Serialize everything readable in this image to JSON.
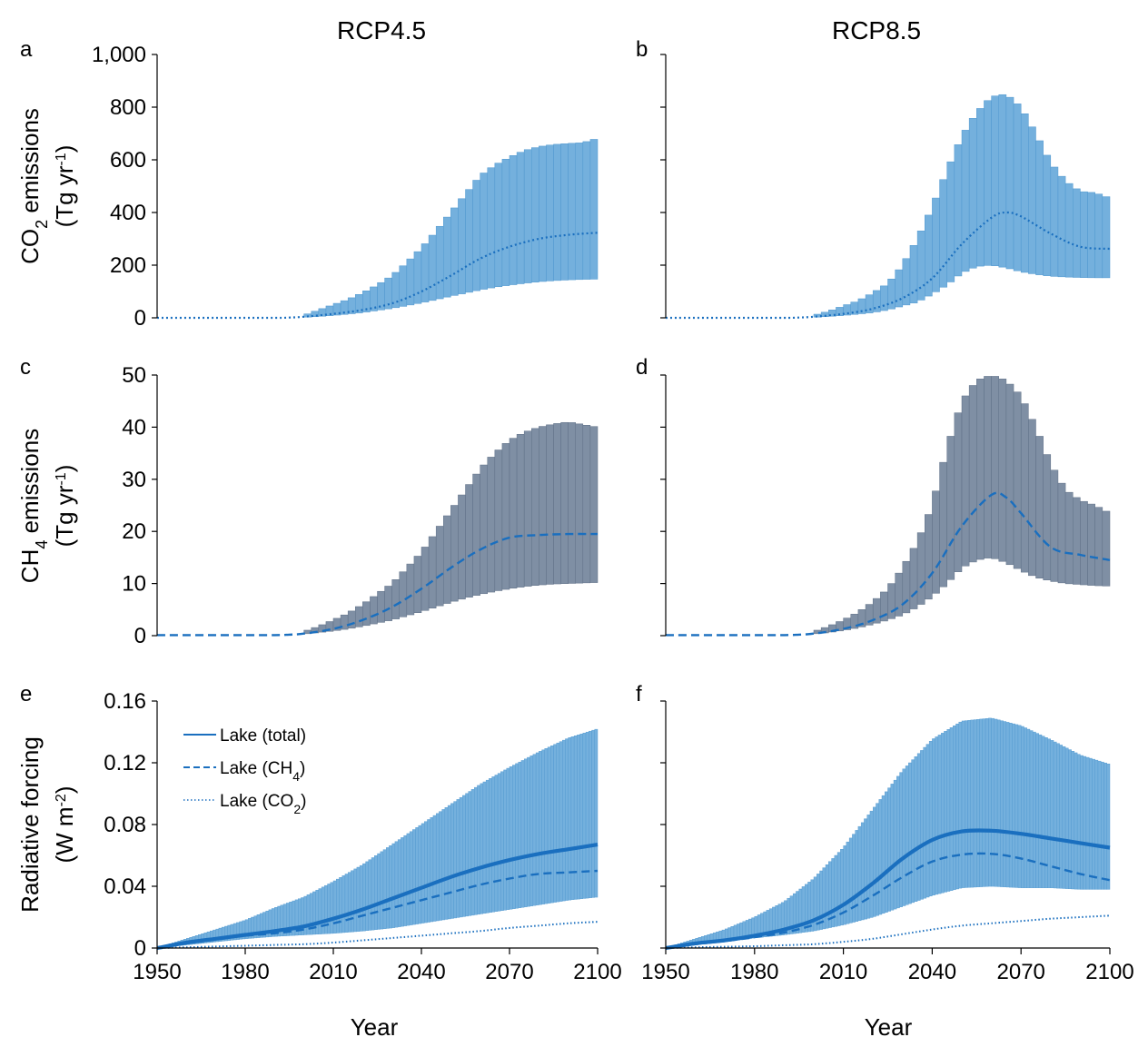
{
  "figure": {
    "col_titles": [
      "RCP4.5",
      "RCP8.5"
    ],
    "panel_letters": [
      "a",
      "b",
      "c",
      "d",
      "e",
      "f"
    ],
    "xlabel": "Year",
    "x_ticks": [
      "1950",
      "1980",
      "2010",
      "2040",
      "2070",
      "2100"
    ],
    "ylabel_co2": {
      "line1": "CO",
      "sub": "2",
      "line1b": " emissions",
      "line2": "(Tg yr",
      "sup": "-1",
      "line2b": ")"
    },
    "ylabel_ch4": {
      "line1": "CH",
      "sub": "4",
      "line1b": " emissions",
      "line2": "(Tg yr",
      "sup": "-1",
      "line2b": ")"
    },
    "ylabel_rf": {
      "line1": "Radiative forcing",
      "line2": "(W m",
      "sup": "-2",
      "line2b": ")"
    },
    "y_ticks_co2": [
      "0",
      "200",
      "400",
      "600",
      "800",
      "1,000"
    ],
    "y_ticks_ch4": [
      "0",
      "10",
      "20",
      "30",
      "40",
      "50"
    ],
    "y_ticks_rf": [
      "0",
      "0.04",
      "0.08",
      "0.12",
      "0.16"
    ],
    "legend": [
      {
        "label": "Lake (total)",
        "sub": "",
        "tail": ""
      },
      {
        "label": "Lake (CH",
        "sub": "4",
        "tail": ")"
      },
      {
        "label": "Lake (CO",
        "sub": "2",
        "tail": ")"
      }
    ]
  },
  "colors": {
    "co2_bar": "#74b0dd",
    "ch4_bar": "#7f8fa4",
    "line": "#1a6fbf",
    "rf_bar": "#74b0dd"
  },
  "chart_data": [
    {
      "type": "bar",
      "panel": "a",
      "scenario": "RCP4.5",
      "ylabel": "CO2 emissions (Tg yr-1)",
      "ylim": [
        0,
        1000
      ],
      "x": [
        2000,
        2005,
        2010,
        2015,
        2020,
        2025,
        2030,
        2035,
        2040,
        2045,
        2050,
        2055,
        2060,
        2065,
        2070,
        2075,
        2080,
        2085,
        2090,
        2095,
        2100
      ],
      "low": [
        2,
        5,
        9,
        14,
        20,
        28,
        36,
        46,
        57,
        69,
        82,
        94,
        106,
        116,
        124,
        131,
        137,
        141,
        144,
        146,
        147
      ],
      "high": [
        10,
        30,
        50,
        70,
        95,
        125,
        160,
        210,
        265,
        330,
        400,
        470,
        540,
        580,
        610,
        635,
        650,
        658,
        662,
        665,
        682
      ],
      "median": {
        "x": [
          1950,
          1970,
          1990,
          1995,
          2000,
          2010,
          2020,
          2030,
          2040,
          2050,
          2060,
          2070,
          2080,
          2090,
          2100
        ],
        "y": [
          0,
          0,
          0,
          1,
          4,
          15,
          30,
          55,
          100,
          160,
          225,
          270,
          300,
          315,
          323
        ]
      }
    },
    {
      "type": "bar",
      "panel": "b",
      "scenario": "RCP8.5",
      "ylim": [
        0,
        1000
      ],
      "x": [
        2000,
        2005,
        2010,
        2015,
        2020,
        2025,
        2030,
        2035,
        2040,
        2045,
        2050,
        2055,
        2060,
        2065,
        2070,
        2075,
        2080,
        2085,
        2090,
        2095,
        2100
      ],
      "low": [
        2,
        5,
        9,
        14,
        20,
        30,
        45,
        60,
        90,
        125,
        170,
        195,
        200,
        190,
        175,
        165,
        158,
        155,
        153,
        152,
        152
      ],
      "high": [
        10,
        25,
        45,
        65,
        95,
        130,
        200,
        300,
        420,
        560,
        690,
        780,
        840,
        850,
        800,
        700,
        590,
        520,
        480,
        475,
        455
      ],
      "median": {
        "x": [
          1950,
          1970,
          1990,
          1995,
          2000,
          2010,
          2020,
          2030,
          2040,
          2050,
          2060,
          2065,
          2070,
          2080,
          2090,
          2100
        ],
        "y": [
          0,
          0,
          0,
          1,
          4,
          15,
          35,
          75,
          150,
          280,
          380,
          400,
          385,
          320,
          270,
          262
        ]
      }
    },
    {
      "type": "bar",
      "panel": "c",
      "scenario": "RCP4.5",
      "ylabel": "CH4 emissions (Tg yr-1)",
      "ylim": [
        0,
        50
      ],
      "x": [
        2000,
        2005,
        2010,
        2015,
        2020,
        2025,
        2030,
        2035,
        2040,
        2045,
        2050,
        2055,
        2060,
        2065,
        2070,
        2075,
        2080,
        2085,
        2090,
        2095,
        2100
      ],
      "low": [
        0.3,
        0.6,
        0.9,
        1.3,
        1.8,
        2.4,
        3,
        3.8,
        4.6,
        5.5,
        6.4,
        7.2,
        7.9,
        8.5,
        9,
        9.4,
        9.7,
        9.9,
        10,
        10.1,
        10.2
      ],
      "high": [
        0.8,
        1.8,
        3,
        4.3,
        6,
        8,
        10,
        13,
        16,
        20,
        24,
        28,
        32,
        35,
        37.5,
        39,
        40,
        40.6,
        41,
        40.5,
        40
      ],
      "median": {
        "x": [
          1950,
          1970,
          1990,
          1995,
          2000,
          2010,
          2020,
          2030,
          2040,
          2050,
          2060,
          2070,
          2080,
          2090,
          2100
        ],
        "y": [
          0.1,
          0.1,
          0.1,
          0.2,
          0.4,
          1.3,
          3,
          5.5,
          9,
          13,
          16.5,
          18.8,
          19.3,
          19.5,
          19.5
        ]
      }
    },
    {
      "type": "bar",
      "panel": "d",
      "scenario": "RCP8.5",
      "ylim": [
        0,
        50
      ],
      "x": [
        2000,
        2005,
        2010,
        2015,
        2020,
        2025,
        2030,
        2035,
        2040,
        2045,
        2050,
        2055,
        2060,
        2065,
        2070,
        2075,
        2080,
        2085,
        2090,
        2095,
        2100
      ],
      "low": [
        0.3,
        0.6,
        1,
        1.5,
        2.2,
        3,
        4,
        5.5,
        7.5,
        10,
        13,
        14.5,
        15,
        14,
        12.5,
        11.2,
        10.5,
        10,
        9.8,
        9.6,
        9.5
      ],
      "high": [
        0.8,
        1.8,
        3,
        4.5,
        6.5,
        9,
        13,
        18,
        25,
        36,
        45,
        49,
        50,
        49,
        46,
        40,
        33,
        28,
        26,
        25,
        23.5
      ],
      "median": {
        "x": [
          1950,
          1970,
          1990,
          1995,
          2000,
          2010,
          2020,
          2030,
          2040,
          2050,
          2060,
          2065,
          2070,
          2080,
          2090,
          2100
        ],
        "y": [
          0.1,
          0.1,
          0.1,
          0.2,
          0.4,
          1.3,
          3,
          6,
          12,
          21,
          27,
          26.5,
          23.5,
          17,
          15.5,
          14.5
        ]
      }
    },
    {
      "type": "area",
      "panel": "e",
      "scenario": "RCP4.5",
      "ylabel": "Radiative forcing (W m-2)",
      "ylim": [
        0,
        0.16
      ],
      "x": [
        1950,
        1960,
        1970,
        1980,
        1990,
        2000,
        2010,
        2020,
        2030,
        2040,
        2050,
        2060,
        2070,
        2080,
        2090,
        2100
      ],
      "low": [
        0,
        0.002,
        0.004,
        0.006,
        0.0075,
        0.0085,
        0.0095,
        0.011,
        0.013,
        0.016,
        0.019,
        0.022,
        0.025,
        0.028,
        0.031,
        0.033
      ],
      "high": [
        0,
        0.006,
        0.012,
        0.018,
        0.026,
        0.033,
        0.043,
        0.054,
        0.067,
        0.08,
        0.093,
        0.106,
        0.117,
        0.127,
        0.136,
        0.142
      ],
      "series": [
        {
          "name": "Lake (total)",
          "values": [
            0,
            0.0035,
            0.006,
            0.0085,
            0.011,
            0.014,
            0.019,
            0.025,
            0.032,
            0.039,
            0.046,
            0.052,
            0.057,
            0.061,
            0.064,
            0.067
          ]
        },
        {
          "name": "Lake (CH4)",
          "values": [
            0,
            0.003,
            0.0055,
            0.008,
            0.0095,
            0.012,
            0.016,
            0.021,
            0.026,
            0.031,
            0.036,
            0.041,
            0.045,
            0.048,
            0.049,
            0.05
          ]
        },
        {
          "name": "Lake (CO2)",
          "values": [
            0,
            0.0005,
            0.001,
            0.0015,
            0.002,
            0.0025,
            0.0035,
            0.005,
            0.0065,
            0.008,
            0.0095,
            0.011,
            0.013,
            0.0145,
            0.016,
            0.017
          ]
        }
      ]
    },
    {
      "type": "area",
      "panel": "f",
      "scenario": "RCP8.5",
      "ylim": [
        0,
        0.16
      ],
      "x": [
        1950,
        1960,
        1970,
        1980,
        1990,
        2000,
        2010,
        2020,
        2030,
        2040,
        2050,
        2060,
        2070,
        2080,
        2090,
        2100
      ],
      "low": [
        0,
        0.002,
        0.004,
        0.0065,
        0.0085,
        0.011,
        0.015,
        0.02,
        0.027,
        0.034,
        0.039,
        0.04,
        0.039,
        0.039,
        0.038,
        0.038
      ],
      "high": [
        0,
        0.006,
        0.012,
        0.02,
        0.03,
        0.045,
        0.065,
        0.09,
        0.115,
        0.135,
        0.147,
        0.149,
        0.144,
        0.135,
        0.125,
        0.119
      ],
      "series": [
        {
          "name": "Lake (total)",
          "values": [
            0,
            0.003,
            0.005,
            0.008,
            0.012,
            0.018,
            0.028,
            0.042,
            0.058,
            0.07,
            0.0755,
            0.076,
            0.074,
            0.071,
            0.068,
            0.065
          ]
        },
        {
          "name": "Lake (CH4)",
          "values": [
            0,
            0.0025,
            0.0045,
            0.007,
            0.01,
            0.015,
            0.023,
            0.034,
            0.046,
            0.056,
            0.0605,
            0.061,
            0.058,
            0.053,
            0.048,
            0.044
          ]
        },
        {
          "name": "Lake (CO2)",
          "values": [
            0,
            0.0005,
            0.0008,
            0.0012,
            0.0018,
            0.0025,
            0.004,
            0.006,
            0.009,
            0.012,
            0.0145,
            0.016,
            0.0175,
            0.019,
            0.02,
            0.021
          ]
        }
      ]
    }
  ]
}
